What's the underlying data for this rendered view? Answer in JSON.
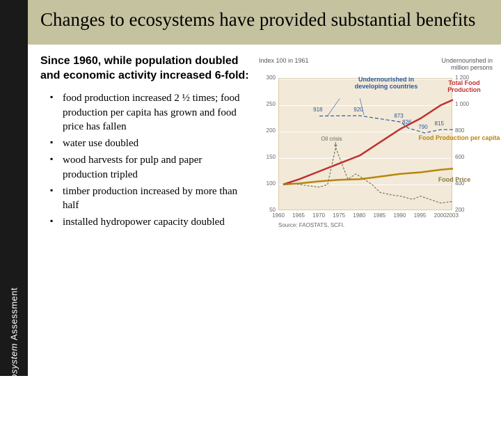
{
  "leftbar": {
    "brand": "Millennium Ecosystem Assessment"
  },
  "title": "Changes to ecosystems have provided substantial benefits",
  "intro": "Since 1960, while population doubled and economic activity increased 6-fold:",
  "bullets": [
    "food production increased 2 ½ times; food production per capita has grown and food price has fallen",
    "water use doubled",
    "wood harvests for pulp and paper production tripled",
    "timber production increased by more than half",
    "installed hydropower capacity doubled"
  ],
  "chart": {
    "left_axis_title": "Index 100 in 1961",
    "right_axis_title": "Undernourished in million persons",
    "left_ticks": [
      50,
      100,
      150,
      200,
      250,
      300
    ],
    "right_ticks": [
      200,
      400,
      600,
      800,
      1000,
      1200
    ],
    "x_ticks": [
      1960,
      1965,
      1970,
      1975,
      1980,
      1985,
      1990,
      1995,
      2000,
      2003
    ],
    "x_range": [
      1960,
      2003
    ],
    "left_range": [
      50,
      300
    ],
    "right_range": [
      200,
      1200
    ],
    "plot_bg": "#f2e9d8",
    "grid_color": "#ffffff",
    "series": {
      "total_food": {
        "label": "Total Food Production",
        "color": "#c03030",
        "width": 2.5,
        "points": [
          [
            1961,
            100
          ],
          [
            1965,
            110
          ],
          [
            1970,
            125
          ],
          [
            1975,
            140
          ],
          [
            1980,
            155
          ],
          [
            1985,
            180
          ],
          [
            1990,
            205
          ],
          [
            1995,
            225
          ],
          [
            2000,
            250
          ],
          [
            2003,
            260
          ]
        ]
      },
      "per_capita": {
        "label": "Food Production per capita",
        "color": "#b8860b",
        "width": 2.5,
        "points": [
          [
            1961,
            100
          ],
          [
            1965,
            102
          ],
          [
            1970,
            106
          ],
          [
            1975,
            109
          ],
          [
            1980,
            110
          ],
          [
            1985,
            115
          ],
          [
            1990,
            120
          ],
          [
            1995,
            123
          ],
          [
            2000,
            128
          ],
          [
            2003,
            130
          ]
        ]
      },
      "price": {
        "label": "Food Price",
        "color": "#7a7a50",
        "width": 1.2,
        "dash": "3,2",
        "points": [
          [
            1961,
            100
          ],
          [
            1963,
            102
          ],
          [
            1965,
            100
          ],
          [
            1967,
            98
          ],
          [
            1970,
            95
          ],
          [
            1972,
            100
          ],
          [
            1974,
            170
          ],
          [
            1975,
            150
          ],
          [
            1977,
            110
          ],
          [
            1979,
            120
          ],
          [
            1981,
            110
          ],
          [
            1983,
            100
          ],
          [
            1985,
            85
          ],
          [
            1988,
            80
          ],
          [
            1990,
            78
          ],
          [
            1993,
            72
          ],
          [
            1995,
            78
          ],
          [
            1998,
            70
          ],
          [
            2000,
            65
          ],
          [
            2003,
            68
          ]
        ]
      },
      "undernourished": {
        "label": "Undernourished in developing countries",
        "color": "#2a5aa0",
        "width": 1.2,
        "dash": "5,3",
        "axis": "right",
        "points": [
          [
            1970,
            918
          ],
          [
            1980,
            920
          ],
          [
            1990,
            873
          ],
          [
            1992,
            826
          ],
          [
            1996,
            790
          ],
          [
            2000,
            815
          ],
          [
            2003,
            815
          ]
        ]
      }
    },
    "data_labels": [
      {
        "x": 1970,
        "y": 918,
        "text": "918"
      },
      {
        "x": 1980,
        "y": 920,
        "text": "920"
      },
      {
        "x": 1990,
        "y": 873,
        "text": "873"
      },
      {
        "x": 1992,
        "y": 826,
        "text": "826"
      },
      {
        "x": 1996,
        "y": 790,
        "text": "790"
      },
      {
        "x": 2000,
        "y": 815,
        "text": "815"
      }
    ],
    "oil_crisis": {
      "text": "Oil crisis",
      "x": 1974
    },
    "source": "Source: FAOSTATS, SCFI."
  }
}
